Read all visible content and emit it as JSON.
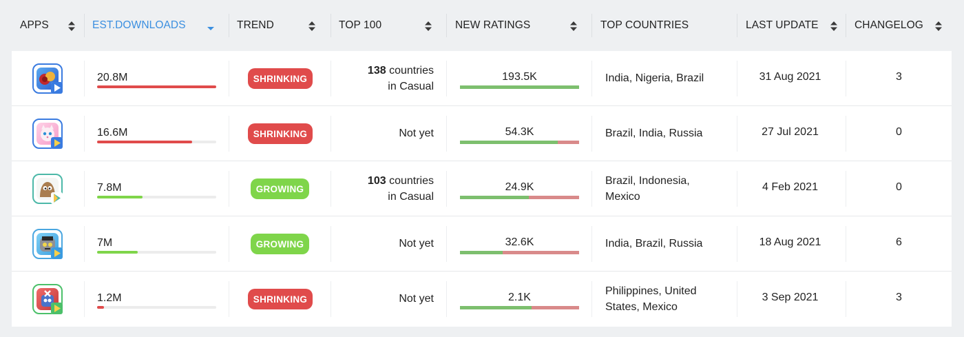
{
  "columns": {
    "apps": "APPS",
    "downloads": "EST.DOWNLOADS",
    "trend": "TREND",
    "top100": "TOP 100",
    "ratings": "NEW RATINGS",
    "countries": "TOP COUNTRIES",
    "last_update": "LAST UPDATE",
    "changelog": "CHANGELOG"
  },
  "colors": {
    "active_header": "#3b8fe0",
    "shrinking": "#e04b4b",
    "growing": "#7fd54a",
    "rating_positive": "#7dbf6e",
    "rating_negative": "#d98a8a"
  },
  "rows": [
    {
      "icon": "candy-game-icon",
      "downloads": "20.8M",
      "downloads_fraction": 1.0,
      "trend": "SHRINKING",
      "top100_bold": "138",
      "top100_rest": " countries",
      "top100_line2": "in Casual",
      "ratings": "193.5K",
      "ratings_positive_fraction": 1.0,
      "countries": "India, Nigeria, Brazil",
      "last_update": "31 Aug 2021",
      "changelog": "3"
    },
    {
      "icon": "talking-angela-icon",
      "downloads": "16.6M",
      "downloads_fraction": 0.8,
      "trend": "SHRINKING",
      "top100_text": "Not yet",
      "ratings": "54.3K",
      "ratings_positive_fraction": 0.82,
      "countries": "Brazil, India, Russia",
      "last_update": "27 Jul 2021",
      "changelog": "0"
    },
    {
      "icon": "pou-icon",
      "downloads": "7.8M",
      "downloads_fraction": 0.38,
      "trend": "GROWING",
      "top100_bold": "103",
      "top100_rest": " countries",
      "top100_line2": "in Casual",
      "ratings": "24.9K",
      "ratings_positive_fraction": 0.58,
      "countries_line1": "Brazil, Indonesia,",
      "countries_line2": "Mexico",
      "last_update": "4 Feb 2021",
      "changelog": "0"
    },
    {
      "icon": "talking-tom-icon",
      "downloads": "7M",
      "downloads_fraction": 0.34,
      "trend": "GROWING",
      "top100_text": "Not yet",
      "ratings": "32.6K",
      "ratings_positive_fraction": 0.36,
      "countries": "India, Brazil, Russia",
      "last_update": "18 Aug 2021",
      "changelog": "6"
    },
    {
      "icon": "monster-game-icon",
      "downloads": "1.2M",
      "downloads_fraction": 0.06,
      "trend": "SHRINKING",
      "top100_text": "Not yet",
      "ratings": "2.1K",
      "ratings_positive_fraction": 0.6,
      "countries_line1": "Philippines, United",
      "countries_line2": "States, Mexico",
      "last_update": "3 Sep 2021",
      "changelog": "3"
    }
  ]
}
